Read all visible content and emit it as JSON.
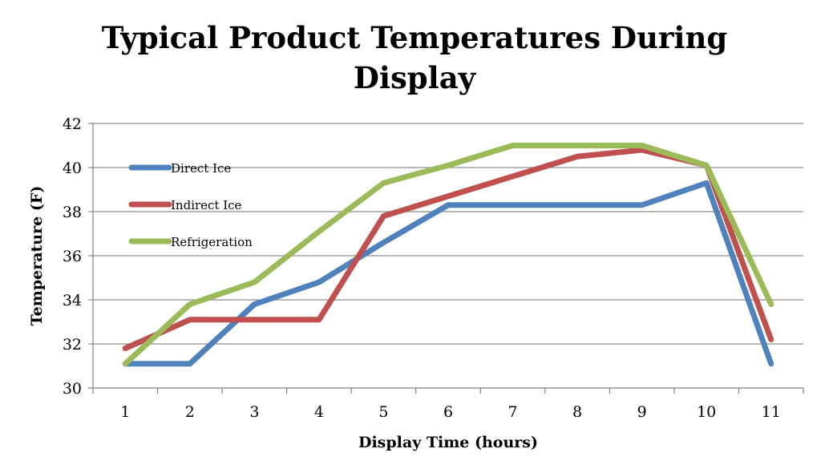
{
  "chart_data": {
    "type": "line",
    "title": "Typical  Product Temperatures During\nDisplay",
    "xlabel": "Display Time (hours)",
    "ylabel": "Temperature (F)",
    "categories": [
      "1",
      "2",
      "3",
      "4",
      "5",
      "6",
      "7",
      "8",
      "9",
      "10",
      "11"
    ],
    "ylim": [
      30,
      42
    ],
    "yticks": [
      "30",
      "32",
      "34",
      "36",
      "38",
      "40",
      "42"
    ],
    "grid": true,
    "legend": "top-left, inside plot",
    "series": [
      {
        "name": "Direct Ice",
        "color": "#4f81bd",
        "values": [
          31.1,
          31.1,
          33.8,
          34.8,
          36.6,
          38.3,
          38.3,
          38.3,
          38.3,
          39.3,
          31.1
        ]
      },
      {
        "name": "Indirect Ice",
        "color": "#c0504d",
        "values": [
          31.8,
          33.1,
          33.1,
          33.1,
          37.8,
          38.7,
          39.6,
          40.5,
          40.8,
          40.1,
          32.2
        ]
      },
      {
        "name": "Refrigeration",
        "color": "#9bbb59",
        "values": [
          31.1,
          33.8,
          34.8,
          37.1,
          39.3,
          40.1,
          41.0,
          41.0,
          41.0,
          40.1,
          33.8
        ]
      }
    ]
  }
}
